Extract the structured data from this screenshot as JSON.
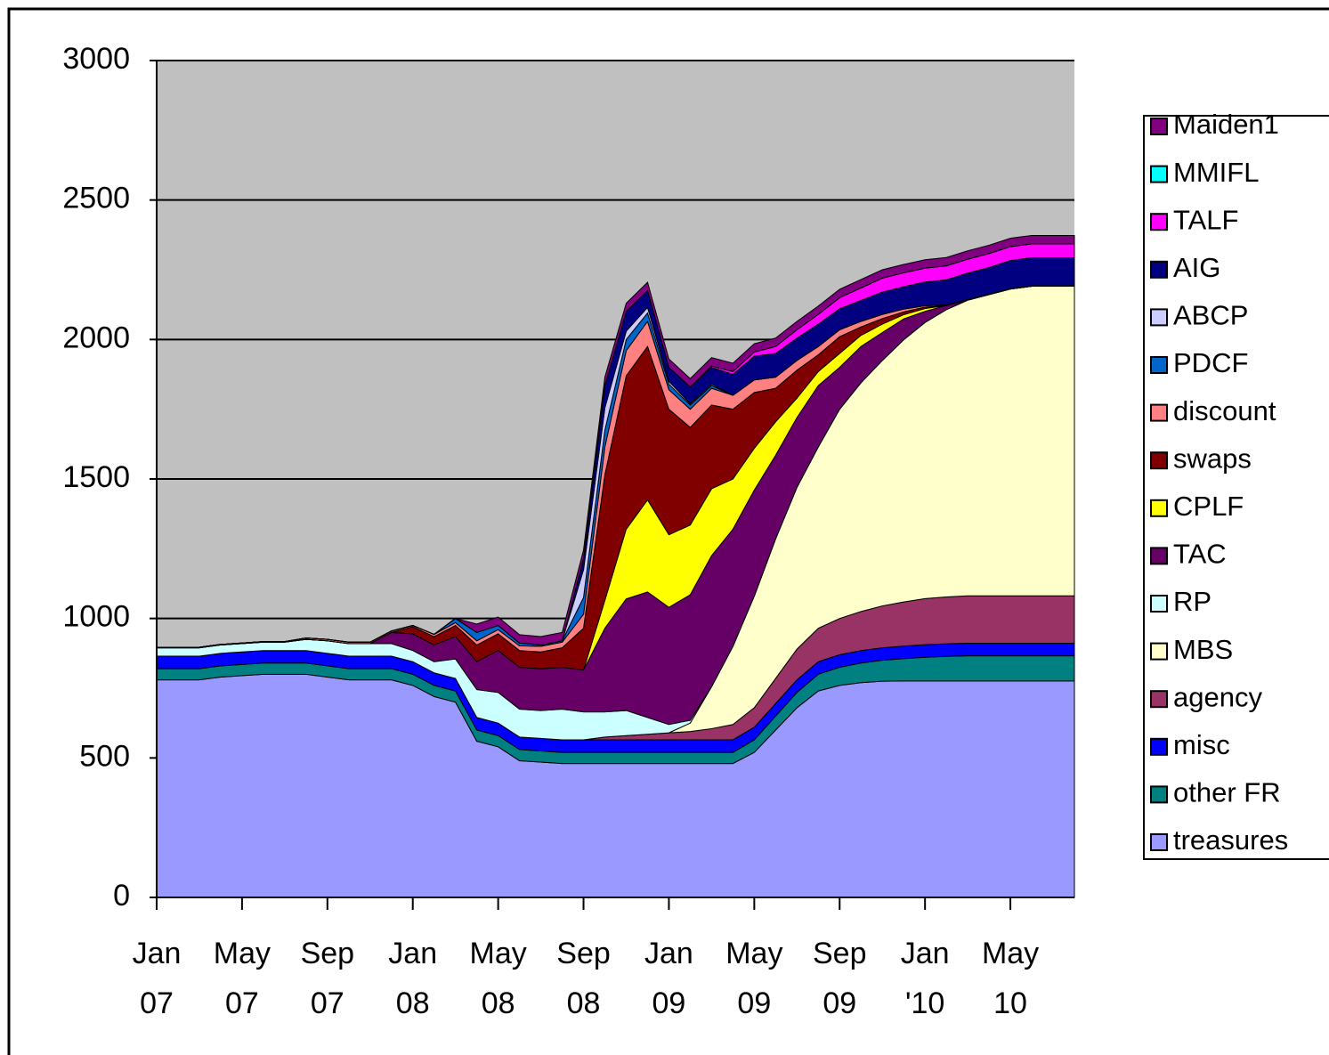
{
  "chart_data": {
    "type": "stacked_area",
    "categories": [
      "Jan 07",
      null,
      null,
      null,
      "May 07",
      null,
      null,
      null,
      "Sep 07",
      null,
      null,
      null,
      "Jan 08",
      null,
      null,
      null,
      "May 08",
      null,
      null,
      null,
      "Sep 08",
      null,
      null,
      null,
      "Jan 09",
      null,
      null,
      null,
      "May 09",
      null,
      null,
      null,
      "Sep 09",
      null,
      null,
      null,
      "Jan '10",
      null,
      null,
      null,
      "May 10",
      null,
      null,
      null
    ],
    "ylim": [
      0,
      3000
    ],
    "yticks": [
      0,
      500,
      1000,
      1500,
      2000,
      2500,
      3000
    ],
    "grid": true,
    "legend": "right",
    "series": [
      {
        "name": "treasures",
        "color": "#9999ff",
        "values": [
          780,
          780,
          780,
          790,
          795,
          800,
          800,
          800,
          790,
          780,
          780,
          780,
          760,
          720,
          700,
          560,
          540,
          490,
          485,
          480,
          480,
          480,
          480,
          480,
          480,
          480,
          480,
          480,
          520,
          600,
          680,
          740,
          760,
          770,
          775,
          776,
          776,
          776,
          776,
          776,
          776,
          776,
          776,
          776
        ]
      },
      {
        "name": "other FR",
        "color": "#008080",
        "values": [
          40,
          40,
          40,
          40,
          40,
          40,
          40,
          40,
          40,
          40,
          40,
          40,
          40,
          40,
          40,
          40,
          40,
          40,
          40,
          40,
          40,
          40,
          40,
          40,
          40,
          40,
          40,
          40,
          45,
          50,
          55,
          60,
          65,
          70,
          75,
          80,
          85,
          88,
          90,
          90,
          90,
          90,
          90,
          90
        ]
      },
      {
        "name": "misc",
        "color": "#0000ff",
        "values": [
          45,
          45,
          45,
          45,
          45,
          45,
          45,
          45,
          45,
          45,
          45,
          45,
          45,
          45,
          45,
          45,
          45,
          45,
          45,
          45,
          45,
          45,
          45,
          45,
          45,
          45,
          45,
          45,
          45,
          45,
          45,
          45,
          45,
          45,
          45,
          45,
          45,
          45,
          45,
          45,
          45,
          45,
          45,
          45
        ]
      },
      {
        "name": "agency",
        "color": "#993366",
        "values": [
          0,
          0,
          0,
          0,
          0,
          0,
          0,
          0,
          0,
          0,
          0,
          0,
          0,
          0,
          0,
          0,
          0,
          0,
          0,
          0,
          0,
          10,
          15,
          20,
          25,
          30,
          40,
          55,
          70,
          90,
          110,
          120,
          130,
          140,
          150,
          158,
          165,
          168,
          170,
          170,
          170,
          170,
          170,
          170
        ]
      },
      {
        "name": "MBS",
        "color": "#ffffcc",
        "values": [
          0,
          0,
          0,
          0,
          0,
          0,
          0,
          0,
          0,
          0,
          0,
          0,
          0,
          0,
          0,
          0,
          0,
          0,
          0,
          0,
          0,
          0,
          0,
          0,
          0,
          30,
          150,
          280,
          400,
          500,
          580,
          650,
          750,
          820,
          880,
          940,
          990,
          1030,
          1060,
          1080,
          1100,
          1110,
          1110,
          1110
        ]
      },
      {
        "name": "RP",
        "color": "#ccffff",
        "values": [
          30,
          30,
          30,
          30,
          30,
          30,
          30,
          40,
          45,
          45,
          45,
          45,
          40,
          40,
          70,
          100,
          110,
          100,
          100,
          110,
          100,
          90,
          90,
          60,
          30,
          10,
          0,
          0,
          0,
          0,
          0,
          0,
          0,
          0,
          0,
          0,
          0,
          0,
          0,
          0,
          0,
          0,
          0,
          0
        ]
      },
      {
        "name": "TAC",
        "color": "#660066",
        "values": [
          0,
          0,
          0,
          0,
          0,
          0,
          0,
          0,
          0,
          0,
          0,
          40,
          60,
          60,
          80,
          100,
          150,
          150,
          150,
          150,
          150,
          300,
          400,
          450,
          420,
          450,
          470,
          420,
          380,
          300,
          250,
          220,
          150,
          130,
          100,
          75,
          40,
          15,
          0,
          0,
          0,
          0,
          0,
          0
        ]
      },
      {
        "name": "CPLF",
        "color": "#ffff00",
        "values": [
          0,
          0,
          0,
          0,
          0,
          0,
          0,
          0,
          0,
          0,
          0,
          0,
          0,
          0,
          0,
          0,
          0,
          0,
          0,
          0,
          0,
          100,
          250,
          330,
          260,
          250,
          240,
          180,
          150,
          120,
          70,
          50,
          50,
          40,
          30,
          15,
          10,
          0,
          0,
          0,
          0,
          0,
          0,
          0
        ]
      },
      {
        "name": "swaps",
        "color": "#800000",
        "values": [
          0,
          0,
          0,
          0,
          0,
          0,
          0,
          0,
          0,
          0,
          0,
          0,
          25,
          30,
          40,
          60,
          60,
          60,
          60,
          70,
          150,
          450,
          550,
          550,
          450,
          350,
          300,
          250,
          200,
          120,
          100,
          60,
          60,
          30,
          20,
          10,
          5,
          0,
          0,
          0,
          0,
          0,
          0,
          0
        ]
      },
      {
        "name": "discount",
        "color": "#ff8080",
        "values": [
          2,
          2,
          2,
          2,
          2,
          2,
          2,
          5,
          5,
          5,
          5,
          5,
          5,
          8,
          10,
          15,
          15,
          17,
          20,
          20,
          50,
          100,
          90,
          90,
          70,
          65,
          60,
          50,
          45,
          40,
          35,
          30,
          25,
          20,
          15,
          10,
          5,
          2,
          2,
          2,
          2,
          2,
          2,
          2
        ]
      },
      {
        "name": "PDCF",
        "color": "#0066cc",
        "values": [
          0,
          0,
          0,
          0,
          0,
          0,
          0,
          0,
          0,
          0,
          0,
          0,
          0,
          0,
          15,
          30,
          15,
          10,
          5,
          5,
          60,
          60,
          40,
          30,
          20,
          15,
          10,
          0,
          0,
          0,
          0,
          0,
          0,
          0,
          0,
          0,
          0,
          0,
          0,
          0,
          0,
          0,
          0,
          0
        ]
      },
      {
        "name": "ABCP",
        "color": "#ccccff",
        "values": [
          0,
          0,
          0,
          0,
          0,
          0,
          0,
          0,
          0,
          0,
          0,
          0,
          0,
          0,
          0,
          0,
          0,
          0,
          0,
          0,
          100,
          80,
          30,
          20,
          10,
          5,
          5,
          0,
          0,
          0,
          0,
          0,
          0,
          0,
          0,
          0,
          0,
          0,
          0,
          0,
          0,
          0,
          0,
          0
        ]
      },
      {
        "name": "AIG",
        "color": "#000080",
        "values": [
          0,
          0,
          0,
          0,
          0,
          0,
          0,
          0,
          0,
          0,
          0,
          0,
          0,
          0,
          0,
          0,
          0,
          0,
          0,
          0,
          40,
          80,
          70,
          60,
          50,
          60,
          60,
          75,
          85,
          85,
          80,
          80,
          75,
          75,
          80,
          80,
          85,
          90,
          95,
          95,
          100,
          100,
          100,
          100
        ]
      },
      {
        "name": "TALF",
        "color": "#ff00ff",
        "values": [
          0,
          0,
          0,
          0,
          0,
          0,
          0,
          0,
          0,
          0,
          0,
          0,
          0,
          0,
          0,
          0,
          0,
          0,
          0,
          0,
          0,
          0,
          0,
          0,
          0,
          0,
          5,
          10,
          15,
          25,
          30,
          35,
          40,
          45,
          50,
          50,
          50,
          50,
          50,
          50,
          50,
          50,
          50,
          50
        ]
      },
      {
        "name": "MMIFL",
        "color": "#00ffff",
        "values": [
          0,
          0,
          0,
          0,
          0,
          0,
          0,
          0,
          0,
          0,
          0,
          0,
          0,
          0,
          0,
          0,
          0,
          0,
          0,
          0,
          0,
          0,
          0,
          0,
          0,
          0,
          0,
          0,
          0,
          0,
          0,
          0,
          0,
          0,
          0,
          0,
          0,
          0,
          0,
          0,
          0,
          0,
          0,
          0
        ]
      },
      {
        "name": "Maiden1",
        "color": "#800080",
        "values": [
          0,
          0,
          0,
          0,
          0,
          0,
          0,
          0,
          0,
          0,
          0,
          0,
          0,
          0,
          0,
          30,
          30,
          30,
          30,
          30,
          30,
          30,
          30,
          30,
          30,
          30,
          30,
          30,
          30,
          30,
          30,
          30,
          30,
          30,
          30,
          30,
          30,
          30,
          30,
          30,
          30,
          30,
          30,
          30
        ]
      }
    ]
  }
}
